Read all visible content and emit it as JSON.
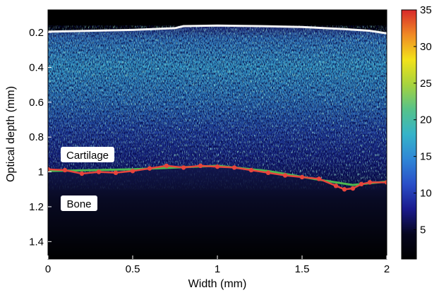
{
  "figure": {
    "xlabel": "Width (mm)",
    "ylabel": "Optical depth (mm)",
    "x_ticks": [
      "0",
      "0.5",
      "1",
      "1.5",
      "2"
    ],
    "y_ticks": [
      "0.2",
      "0.4",
      "0.6",
      "0.8",
      "1",
      "1.2",
      "1.4"
    ],
    "colorbar_ticks": [
      "35",
      "30",
      "25",
      "20",
      "15",
      "10",
      "5"
    ],
    "labels": {
      "cartilage": "Cartilage",
      "bone": "Bone"
    },
    "x_range_mm": [
      0,
      2
    ],
    "y_range_mm": [
      0.07,
      1.5
    ],
    "colorbar_range": [
      1,
      35
    ],
    "surface_depth_mm": [
      [
        0.0,
        0.195
      ],
      [
        0.25,
        0.19
      ],
      [
        0.5,
        0.185
      ],
      [
        0.75,
        0.175
      ],
      [
        0.8,
        0.163
      ],
      [
        1.0,
        0.16
      ],
      [
        1.25,
        0.163
      ],
      [
        1.5,
        0.168
      ],
      [
        1.75,
        0.18
      ],
      [
        1.9,
        0.19
      ],
      [
        2.0,
        0.205
      ]
    ],
    "interface_red_mm": [
      [
        0.0,
        0.985
      ],
      [
        0.1,
        0.99
      ],
      [
        0.2,
        1.01
      ],
      [
        0.3,
        1.0
      ],
      [
        0.4,
        1.005
      ],
      [
        0.5,
        0.995
      ],
      [
        0.6,
        0.98
      ],
      [
        0.7,
        0.965
      ],
      [
        0.8,
        0.975
      ],
      [
        0.9,
        0.965
      ],
      [
        1.0,
        0.97
      ],
      [
        1.1,
        0.975
      ],
      [
        1.2,
        0.99
      ],
      [
        1.3,
        1.005
      ],
      [
        1.4,
        1.02
      ],
      [
        1.5,
        1.03
      ],
      [
        1.6,
        1.04
      ],
      [
        1.7,
        1.08
      ],
      [
        1.75,
        1.1
      ],
      [
        1.8,
        1.095
      ],
      [
        1.85,
        1.07
      ],
      [
        1.9,
        1.06
      ],
      [
        2.0,
        1.06
      ]
    ],
    "interface_green_mm": [
      [
        0.0,
        0.995
      ],
      [
        0.5,
        0.985
      ],
      [
        1.0,
        0.965
      ],
      [
        1.3,
        0.995
      ],
      [
        1.6,
        1.045
      ],
      [
        1.8,
        1.075
      ],
      [
        2.0,
        1.055
      ]
    ],
    "colors": {
      "background": "#ffffff",
      "surface_line": "#f5f5f5",
      "red_line": "#e8453c",
      "green_line": "#4fb84f",
      "label_box": "#ffffff",
      "axis": "#000000"
    }
  }
}
